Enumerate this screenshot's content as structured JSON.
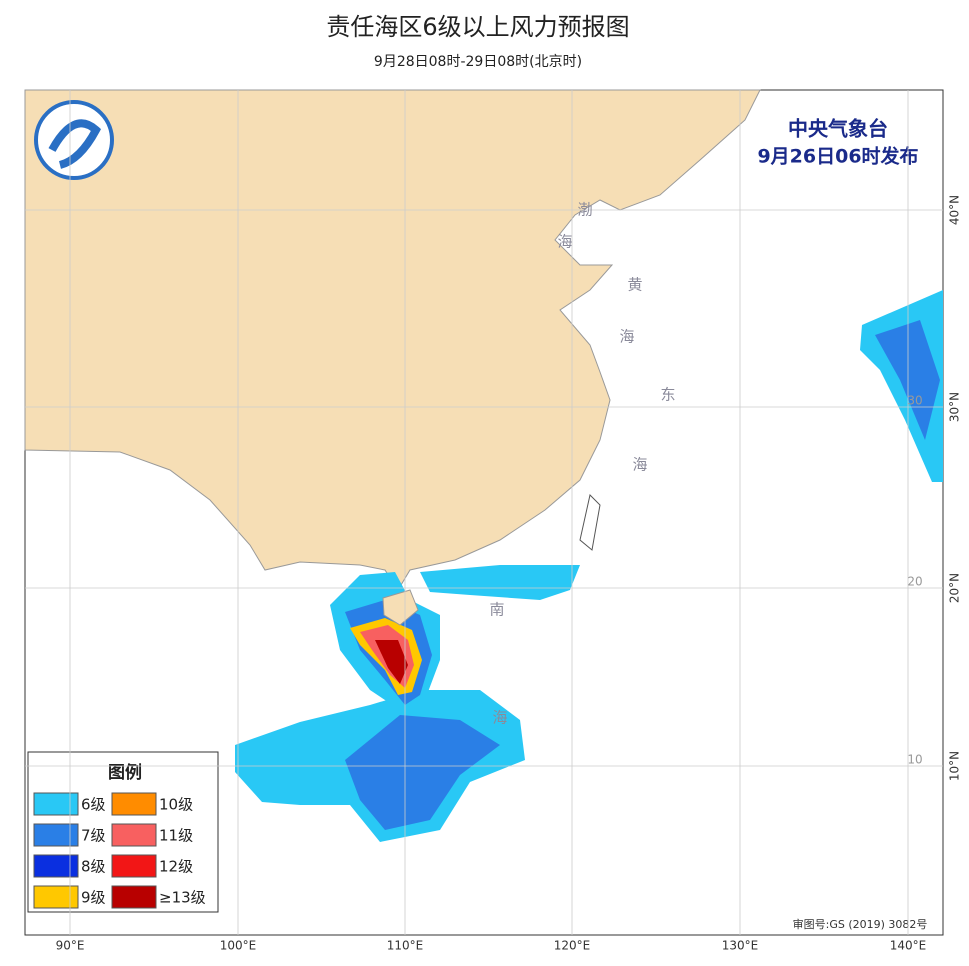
{
  "header": {
    "title": "责任海区6级以上风力预报图",
    "subtitle": "9月28日08时-29日08时(北京时)"
  },
  "issuer": {
    "name": "中央气象台",
    "time": "9月26日06时发布"
  },
  "sea_labels": [
    "渤",
    "海",
    "黄",
    "海",
    "东",
    "海",
    "南",
    "海"
  ],
  "grid_labels": [
    "30",
    "20",
    "10"
  ],
  "lat_labels": [
    "40°N",
    "30°N",
    "20°N",
    "10°N"
  ],
  "lon_labels": [
    "90°E",
    "100°E",
    "110°E",
    "120°E",
    "130°E",
    "140°E"
  ],
  "legend": {
    "title": "图例",
    "items": [
      {
        "label": "6级",
        "color": "#29c8f5"
      },
      {
        "label": "10级",
        "color": "#ff8c00"
      },
      {
        "label": "7级",
        "color": "#2a7fe6"
      },
      {
        "label": "11级",
        "color": "#f86060"
      },
      {
        "label": "8级",
        "color": "#0a2fe0"
      },
      {
        "label": "12级",
        "color": "#f21616"
      },
      {
        "label": "9级",
        "color": "#ffc800"
      },
      {
        "label": "≥13级",
        "color": "#b80000"
      }
    ]
  },
  "approval": "审图号:GS (2019) 3082号"
}
